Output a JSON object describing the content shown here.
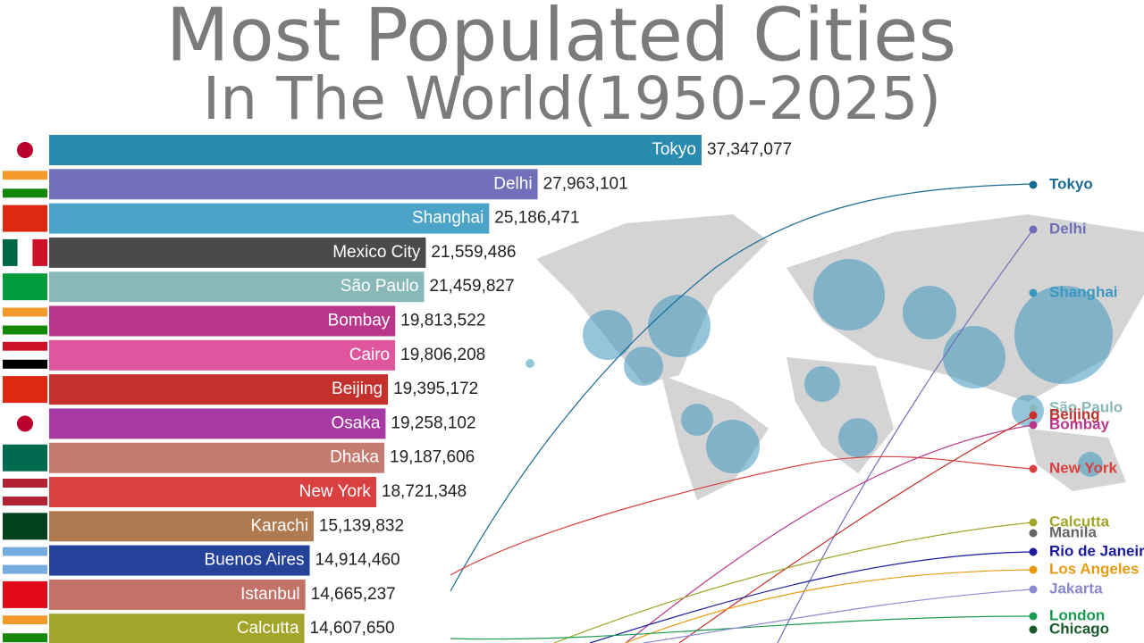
{
  "chart_data": {
    "type": "bar",
    "orientation": "horizontal",
    "title": "Most Populated Cities",
    "subtitle": "In The World(1950-2025)",
    "categories": [
      "Tokyo",
      "Delhi",
      "Shanghai",
      "Mexico City",
      "São Paulo",
      "Bombay",
      "Cairo",
      "Beijing",
      "Osaka",
      "Dhaka",
      "New York",
      "Karachi",
      "Buenos Aires",
      "Istanbul",
      "Calcutta"
    ],
    "values": [
      37347077,
      27963101,
      25186471,
      21559486,
      21459827,
      19813522,
      19806208,
      19395172,
      19258102,
      19187606,
      18721348,
      15139832,
      14914460,
      14665237,
      14607650
    ],
    "value_labels": [
      "37,347,077",
      "27,963,101",
      "25,186,471",
      "21,559,486",
      "21,459,827",
      "19,813,522",
      "19,806,208",
      "19,395,172",
      "19,258,102",
      "19,187,606",
      "18,721,348",
      "15,139,832",
      "14,914,460",
      "14,665,237",
      "14,607,650"
    ],
    "colors": [
      "#2a8bb1",
      "#7070ba",
      "#4ba4c8",
      "#4a4a4a",
      "#88b8b8",
      "#b8378a",
      "#e0569c",
      "#c4302b",
      "#a63aa2",
      "#c57a6f",
      "#d9403f",
      "#b07a50",
      "#25429b",
      "#c47268",
      "#a2a52a"
    ],
    "trend_labels": [
      {
        "name": "Tokyo",
        "color": "#1a6a94"
      },
      {
        "name": "Delhi",
        "color": "#6f6fb8"
      },
      {
        "name": "Shanghai",
        "color": "#3a98c0"
      },
      {
        "name": "São Paulo",
        "color": "#8ab8b8"
      },
      {
        "name": "Beijing",
        "color": "#c4302b"
      },
      {
        "name": "Bombay",
        "color": "#b8378a"
      },
      {
        "name": "New York",
        "color": "#d9403f"
      },
      {
        "name": "Calcutta",
        "color": "#a2a52a"
      },
      {
        "name": "Manila",
        "color": "#666666"
      },
      {
        "name": "Rio de Janeiro",
        "color": "#1a1aa0"
      },
      {
        "name": "Los Angeles",
        "color": "#e89a10"
      },
      {
        "name": "Jakarta",
        "color": "#8a8ad0"
      },
      {
        "name": "London",
        "color": "#1a9a50"
      },
      {
        "name": "Chicago",
        "color": "#1a5a2a"
      }
    ]
  }
}
